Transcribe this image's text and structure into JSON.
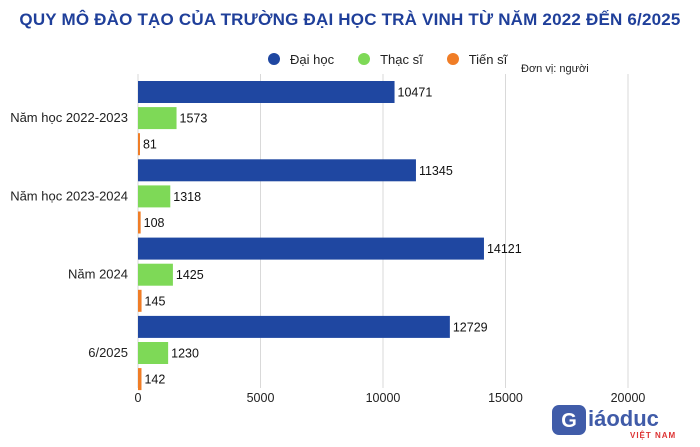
{
  "chart_data": {
    "type": "bar",
    "orientation": "horizontal",
    "title": "QUY MÔ ĐÀO TẠO CỦA TRƯỜNG ĐẠI HỌC TRÀ VINH TỪ NĂM 2022 ĐẾN 6/2025",
    "unit_note": "Đơn vị: người",
    "categories": [
      "Năm học 2022-2023",
      "Năm học 2023-2024",
      "Năm 2024",
      "6/2025"
    ],
    "series": [
      {
        "name": "Đại học",
        "color": "#1f47a1",
        "values": [
          10471,
          11345,
          14121,
          12729
        ]
      },
      {
        "name": "Thạc sĩ",
        "color": "#7ed957",
        "values": [
          1573,
          1318,
          1425,
          1230
        ]
      },
      {
        "name": "Tiến sĩ",
        "color": "#f07d26",
        "values": [
          81,
          108,
          145,
          142
        ]
      }
    ],
    "xlim": [
      0,
      20000
    ],
    "xticks": [
      0,
      5000,
      10000,
      15000,
      20000
    ],
    "grid": true,
    "legend_position": "top"
  },
  "watermark": {
    "brand": "Giáoduc",
    "sub": "VIỆT NAM",
    "icon": "giaoduc-logo-icon"
  }
}
